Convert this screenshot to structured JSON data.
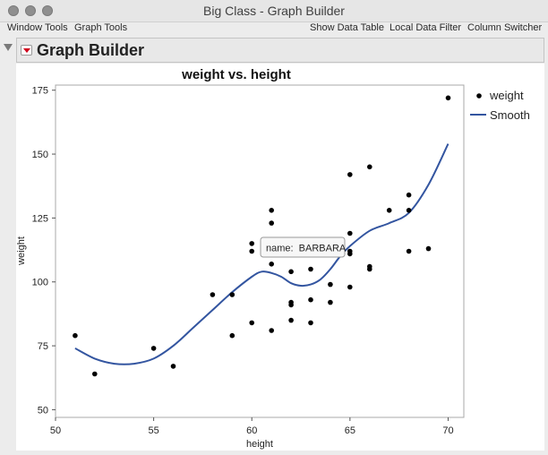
{
  "window": {
    "title": "Big Class - Graph Builder"
  },
  "menubar": {
    "left": [
      "Window Tools",
      "Graph Tools"
    ],
    "right": [
      "Show Data Table",
      "Local Data Filter",
      "Column Switcher"
    ]
  },
  "graph_builder": {
    "title": "Graph Builder"
  },
  "tooltip": {
    "text": "name:  BARBARA"
  },
  "chart_data": {
    "type": "scatter",
    "title": "weight vs. height",
    "xlabel": "height",
    "ylabel": "weight",
    "xlim": [
      50,
      70.8
    ],
    "ylim": [
      47,
      177
    ],
    "xticks": [
      50,
      55,
      60,
      65,
      70
    ],
    "yticks": [
      50,
      75,
      100,
      125,
      150,
      175
    ],
    "grid": false,
    "legend_position": "right",
    "legend": [
      {
        "label": "weight",
        "marker": "dot",
        "color": "#000000"
      },
      {
        "label": "Smooth",
        "marker": "line",
        "color": "#3355a0"
      }
    ],
    "points": [
      [
        51,
        79
      ],
      [
        52,
        64
      ],
      [
        55,
        74
      ],
      [
        56,
        67
      ],
      [
        58,
        95
      ],
      [
        59,
        79
      ],
      [
        59,
        95
      ],
      [
        60,
        84
      ],
      [
        60,
        112
      ],
      [
        60,
        115
      ],
      [
        61,
        81
      ],
      [
        61,
        107
      ],
      [
        61,
        123
      ],
      [
        61,
        128
      ],
      [
        62,
        85
      ],
      [
        62,
        91
      ],
      [
        62,
        92
      ],
      [
        62,
        104
      ],
      [
        62,
        116
      ],
      [
        63,
        84
      ],
      [
        63,
        93
      ],
      [
        63,
        105
      ],
      [
        64,
        92
      ],
      [
        64,
        99
      ],
      [
        65,
        98
      ],
      [
        65,
        111
      ],
      [
        65,
        112
      ],
      [
        65,
        119
      ],
      [
        65,
        142
      ],
      [
        66,
        105
      ],
      [
        66,
        106
      ],
      [
        66,
        145
      ],
      [
        67,
        128
      ],
      [
        68,
        112
      ],
      [
        68,
        128
      ],
      [
        68,
        134
      ],
      [
        69,
        113
      ],
      [
        70,
        172
      ]
    ],
    "smooth": [
      [
        51,
        74
      ],
      [
        52,
        70
      ],
      [
        53,
        68
      ],
      [
        54,
        68
      ],
      [
        55,
        70
      ],
      [
        56,
        75
      ],
      [
        57,
        82
      ],
      [
        58,
        89
      ],
      [
        59,
        96
      ],
      [
        60,
        102
      ],
      [
        60.5,
        104
      ],
      [
        61,
        103.5
      ],
      [
        61.5,
        102
      ],
      [
        62,
        99.5
      ],
      [
        62.5,
        98.5
      ],
      [
        63,
        99
      ],
      [
        63.5,
        101
      ],
      [
        64,
        105
      ],
      [
        64.5,
        110
      ],
      [
        65,
        114
      ],
      [
        66,
        120
      ],
      [
        67,
        123
      ],
      [
        68,
        127
      ],
      [
        69,
        138
      ],
      [
        70,
        154
      ]
    ]
  }
}
